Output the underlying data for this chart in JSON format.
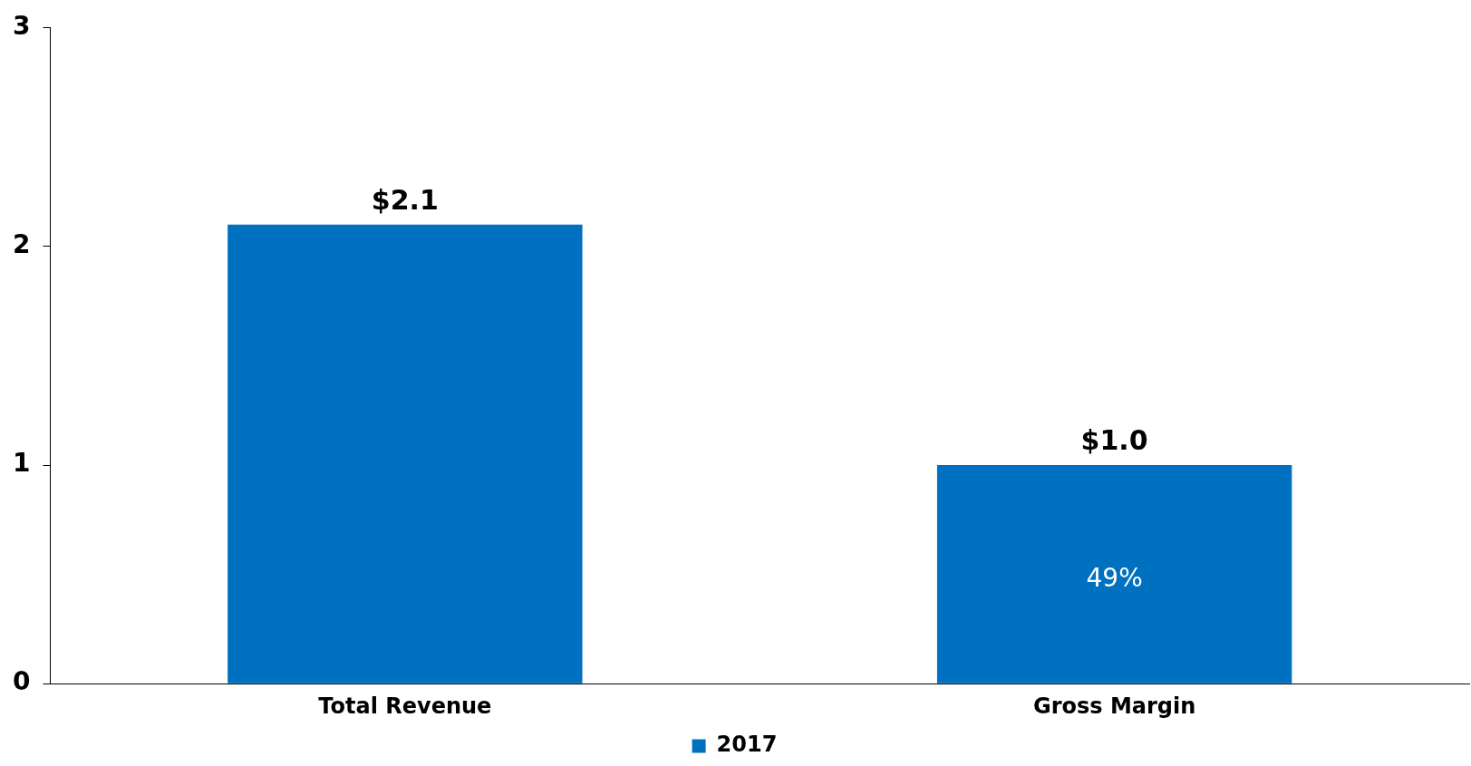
{
  "chart_data": {
    "type": "bar",
    "categories": [
      "Total Revenue",
      "Gross Margin"
    ],
    "series": [
      {
        "name": "2017",
        "color": "#0070c0",
        "values": [
          2.1,
          1.0
        ],
        "value_labels": [
          "$2.1",
          "$1.0"
        ]
      }
    ],
    "ylim": [
      0,
      3
    ],
    "yticks": [
      0,
      1,
      2,
      3
    ],
    "grid": false,
    "legend": "bottom",
    "annotations": [
      "49%"
    ]
  }
}
